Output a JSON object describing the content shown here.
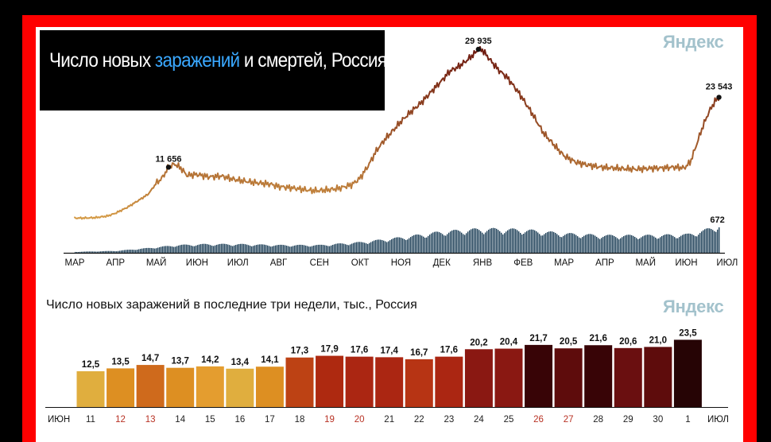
{
  "top_chart": {
    "title_parts": [
      "Число новых ",
      "заражений",
      " и смертей, Россия"
    ],
    "brand": "Яндекс",
    "chart_data": {
      "type": "line",
      "series": [
        {
          "name": "заражений",
          "values": [
            [
              0,
              8.6
            ],
            [
              0.2,
              8.6
            ],
            [
              0.5,
              8.7
            ],
            [
              0.8,
              9.1
            ],
            [
              1.0,
              9.8
            ],
            [
              1.3,
              11.3
            ],
            [
              1.6,
              13.2
            ],
            [
              1.8,
              14.5
            ],
            [
              2.0,
              17.2
            ],
            [
              2.15,
              18.6
            ],
            [
              2.3,
              21.2
            ],
            [
              2.45,
              22.0
            ],
            [
              2.6,
              21.0
            ],
            [
              2.75,
              19.2
            ],
            [
              3.0,
              19.4
            ],
            [
              3.3,
              18.8
            ],
            [
              3.6,
              19.0
            ],
            [
              3.85,
              18.3
            ],
            [
              4.0,
              18.0
            ],
            [
              4.4,
              17.4
            ],
            [
              4.8,
              17.0
            ],
            [
              5.0,
              16.4
            ],
            [
              5.3,
              16.1
            ],
            [
              5.6,
              15.7
            ],
            [
              5.8,
              15.4
            ],
            [
              6.0,
              15.4
            ],
            [
              6.3,
              15.7
            ],
            [
              6.5,
              16.0
            ],
            [
              6.8,
              16.9
            ],
            [
              7.0,
              18.5
            ],
            [
              7.2,
              21.6
            ],
            [
              7.4,
              25.3
            ],
            [
              7.6,
              28.0
            ],
            [
              7.8,
              30.2
            ],
            [
              8.0,
              32.5
            ],
            [
              8.2,
              34.5
            ],
            [
              8.5,
              37.2
            ],
            [
              8.8,
              40.5
            ],
            [
              9.0,
              42.6
            ],
            [
              9.2,
              45.0
            ],
            [
              9.4,
              46.0
            ],
            [
              9.6,
              47.5
            ],
            [
              9.8,
              49.3
            ],
            [
              9.9,
              50.4
            ],
            [
              10.0,
              50.2
            ],
            [
              10.2,
              47.6
            ],
            [
              10.4,
              45.2
            ],
            [
              10.6,
              43.5
            ],
            [
              10.9,
              39.5
            ],
            [
              11.2,
              34.8
            ],
            [
              11.5,
              29.6
            ],
            [
              11.8,
              26.2
            ],
            [
              12.0,
              24.0
            ],
            [
              12.3,
              22.4
            ],
            [
              12.6,
              21.7
            ],
            [
              12.9,
              21.2
            ],
            [
              13.2,
              21.0
            ],
            [
              13.5,
              20.8
            ],
            [
              13.8,
              20.7
            ],
            [
              14.1,
              20.9
            ],
            [
              14.4,
              21.0
            ],
            [
              14.7,
              21.2
            ],
            [
              14.95,
              21.0
            ],
            [
              15.1,
              22.5
            ],
            [
              15.25,
              26.8
            ],
            [
              15.4,
              31.2
            ],
            [
              15.55,
              34.8
            ],
            [
              15.7,
              37.5
            ],
            [
              15.8,
              38.5
            ]
          ]
        },
        {
          "name": "смертей",
          "values": [
            [
              0,
              0.1
            ],
            [
              1,
              0.2
            ],
            [
              1.8,
              0.5
            ],
            [
              2.5,
              0.8
            ],
            [
              3.2,
              0.9
            ],
            [
              4,
              0.9
            ],
            [
              5,
              0.8
            ],
            [
              6,
              0.8
            ],
            [
              7,
              1.1
            ],
            [
              8,
              1.6
            ],
            [
              9,
              2.2
            ],
            [
              10,
              2.5
            ],
            [
              11,
              2.4
            ],
            [
              12,
              2.0
            ],
            [
              13,
              1.8
            ],
            [
              14,
              1.8
            ],
            [
              15,
              1.9
            ],
            [
              15.4,
              2.3
            ],
            [
              15.8,
              2.9
            ]
          ]
        }
      ],
      "x_ticks": [
        "МАР",
        "АПР",
        "МАЙ",
        "ИЮН",
        "ИЮЛ",
        "АВГ",
        "СЕН",
        "ОКТ",
        "НОЯ",
        "ДЕК",
        "ЯНВ",
        "ФЕВ",
        "МАР",
        "АПР",
        "МАЙ",
        "ИЮН",
        "ИЮЛ"
      ],
      "annotations": [
        {
          "text": "11 656",
          "series": "заражений",
          "x": 2.3
        },
        {
          "text": "29 935",
          "series": "заражений",
          "x": 9.9
        },
        {
          "text": "23 543",
          "series": "заражений",
          "x": 15.8
        },
        {
          "text": "672",
          "series": "смертей",
          "x": 15.8
        }
      ],
      "colors": {
        "cases_start": "#d49a46",
        "cases_peak": "#6e1a10",
        "deaths": "#1d3f57"
      }
    }
  },
  "bottom_chart": {
    "title": "Число новых заражений в последние три недели, тыс., Россия",
    "brand": "Яндекс",
    "chart_data": {
      "type": "bar",
      "categories": [
        "11",
        "12",
        "13",
        "14",
        "15",
        "16",
        "17",
        "18",
        "19",
        "20",
        "21",
        "22",
        "23",
        "24",
        "25",
        "26",
        "27",
        "28",
        "29",
        "30",
        "1"
      ],
      "values": [
        12.5,
        13.5,
        14.7,
        13.7,
        14.2,
        13.4,
        14.1,
        17.3,
        17.9,
        17.6,
        17.4,
        16.7,
        17.6,
        20.2,
        20.4,
        21.7,
        20.5,
        21.6,
        20.6,
        21.0,
        23.5
      ],
      "labels": [
        "12,5",
        "13,5",
        "14,7",
        "13,7",
        "14,2",
        "13,4",
        "14,1",
        "17,3",
        "17,9",
        "17,6",
        "17,4",
        "16,7",
        "17,6",
        "20,2",
        "20,4",
        "21,7",
        "20,5",
        "21,6",
        "20,6",
        "21,0",
        "23,5"
      ],
      "colors": [
        "#e0ae3e",
        "#dd8f22",
        "#cf6a1c",
        "#dd8f22",
        "#e49d2f",
        "#e0ae3e",
        "#dd8f22",
        "#bd4214",
        "#ae2910",
        "#ab2612",
        "#ab2612",
        "#b73414",
        "#ab2612",
        "#8a1812",
        "#8a1812",
        "#380406",
        "#5e0c0c",
        "#380406",
        "#6a0f10",
        "#5e0c0c",
        "#260405"
      ],
      "tick_colors": [
        "#222",
        "#b83224",
        "#b83224",
        "#222",
        "#222",
        "#222",
        "#222",
        "#222",
        "#b83224",
        "#b83224",
        "#222",
        "#222",
        "#222",
        "#222",
        "#222",
        "#b83224",
        "#b83224",
        "#222",
        "#222",
        "#222",
        "#222"
      ],
      "x_start_label": "ИЮН",
      "x_end_label": "ИЮЛ"
    }
  }
}
